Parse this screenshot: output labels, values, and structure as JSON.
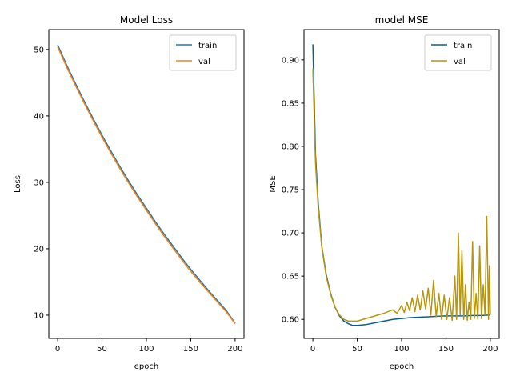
{
  "chart_data": [
    {
      "type": "line",
      "title": "Model Loss",
      "xlabel": "epoch",
      "ylabel": "Loss",
      "xlim": [
        -10,
        210
      ],
      "ylim": [
        6.5,
        53
      ],
      "xticks": [
        0,
        50,
        100,
        150,
        200
      ],
      "yticks": [
        10,
        20,
        30,
        40,
        50
      ],
      "legend": "top-right",
      "grid": false,
      "series": [
        {
          "name": "train",
          "color": "#1f77b4",
          "x": [
            0,
            10,
            20,
            30,
            40,
            50,
            60,
            70,
            80,
            90,
            100,
            110,
            120,
            130,
            140,
            150,
            160,
            170,
            180,
            190,
            200
          ],
          "y": [
            50.7,
            47.7,
            44.9,
            42.2,
            39.6,
            37.1,
            34.7,
            32.4,
            30.2,
            28.1,
            26.1,
            24.1,
            22.2,
            20.4,
            18.6,
            16.9,
            15.3,
            13.7,
            12.2,
            10.7,
            8.8
          ]
        },
        {
          "name": "val",
          "color": "#ff7f0e",
          "x": [
            0,
            10,
            20,
            30,
            40,
            50,
            60,
            70,
            80,
            90,
            100,
            110,
            120,
            130,
            140,
            150,
            160,
            170,
            180,
            190,
            200
          ],
          "y": [
            50.4,
            47.4,
            44.6,
            41.9,
            39.3,
            36.8,
            34.4,
            32.1,
            29.9,
            27.8,
            25.8,
            23.8,
            21.9,
            20.1,
            18.3,
            16.6,
            15.0,
            13.5,
            12.0,
            10.5,
            8.7
          ]
        }
      ]
    },
    {
      "type": "line",
      "title": "model MSE",
      "xlabel": "epoch",
      "ylabel": "MSE",
      "xlim": [
        -10,
        210
      ],
      "ylim": [
        0.578,
        0.935
      ],
      "xticks": [
        0,
        50,
        100,
        150,
        200
      ],
      "yticks": [
        0.6,
        0.65,
        0.7,
        0.75,
        0.8,
        0.85,
        0.9
      ],
      "ytick_labels": [
        "0.60",
        "0.65",
        "0.70",
        "0.75",
        "0.80",
        "0.85",
        "0.90"
      ],
      "legend": "top-right",
      "grid": false,
      "series": [
        {
          "name": "train",
          "color": "#0b5f8f",
          "x": [
            0,
            3,
            6,
            10,
            15,
            20,
            25,
            30,
            35,
            40,
            45,
            50,
            60,
            70,
            80,
            90,
            100,
            110,
            120,
            130,
            140,
            150,
            160,
            170,
            180,
            190,
            200
          ],
          "y": [
            0.918,
            0.79,
            0.735,
            0.685,
            0.652,
            0.63,
            0.614,
            0.604,
            0.598,
            0.595,
            0.593,
            0.593,
            0.594,
            0.596,
            0.598,
            0.6,
            0.601,
            0.602,
            0.6025,
            0.603,
            0.6035,
            0.604,
            0.604,
            0.604,
            0.6045,
            0.6045,
            0.605
          ]
        },
        {
          "name": "val",
          "color": "#b8960b",
          "x": [
            0,
            3,
            6,
            10,
            15,
            20,
            25,
            30,
            35,
            40,
            45,
            50,
            60,
            70,
            80,
            85,
            90,
            95,
            100,
            103,
            106,
            109,
            112,
            115,
            118,
            121,
            124,
            127,
            130,
            133,
            136,
            139,
            142,
            145,
            148,
            151,
            154,
            157,
            160,
            162,
            164,
            166,
            168,
            170,
            172,
            174,
            176,
            178,
            180,
            182,
            184,
            186,
            188,
            190,
            192,
            194,
            196,
            198,
            199,
            200
          ],
          "y": [
            0.89,
            0.78,
            0.73,
            0.684,
            0.65,
            0.629,
            0.614,
            0.605,
            0.6,
            0.598,
            0.598,
            0.598,
            0.601,
            0.604,
            0.607,
            0.609,
            0.611,
            0.607,
            0.616,
            0.608,
            0.62,
            0.61,
            0.625,
            0.609,
            0.628,
            0.611,
            0.633,
            0.612,
            0.636,
            0.605,
            0.645,
            0.603,
            0.63,
            0.6,
            0.628,
            0.6,
            0.625,
            0.599,
            0.65,
            0.6,
            0.7,
            0.605,
            0.68,
            0.6,
            0.64,
            0.599,
            0.62,
            0.6,
            0.69,
            0.601,
            0.63,
            0.6,
            0.685,
            0.601,
            0.64,
            0.605,
            0.719,
            0.6,
            0.662,
            0.605
          ]
        }
      ]
    }
  ]
}
